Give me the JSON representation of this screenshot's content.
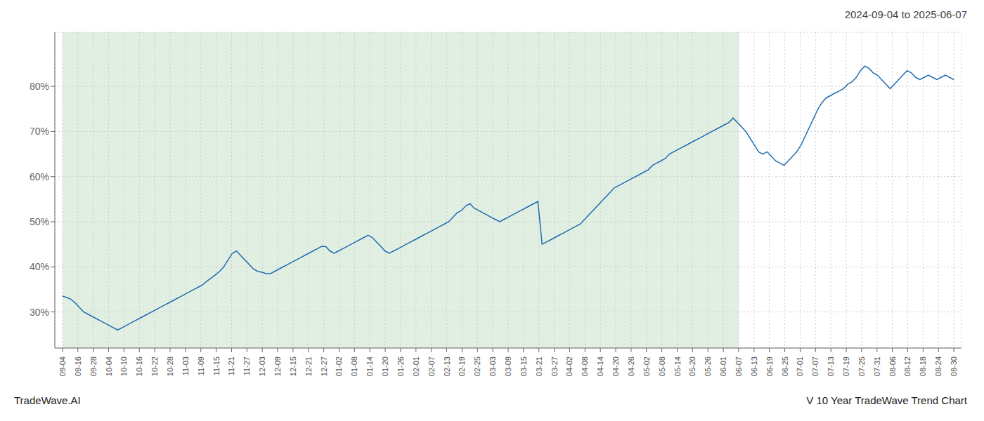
{
  "chart_data": {
    "type": "line",
    "title": "2024-09-04 to 2025-06-07",
    "annotations": [
      "TradeWave.AI",
      "V 10 Year TradeWave Trend Chart"
    ],
    "color": "#1f6cb0",
    "grid": true,
    "shaded_region": {
      "x": [
        0,
        44
      ],
      "color": "#d6ead8"
    },
    "xlim": [
      -0.5,
      58.5
    ],
    "xticks": [
      {
        "value": 0,
        "label": "09-04"
      },
      {
        "value": 1,
        "label": "09-16"
      },
      {
        "value": 2,
        "label": "09-28"
      },
      {
        "value": 3,
        "label": "10-04"
      },
      {
        "value": 4,
        "label": "10-10"
      },
      {
        "value": 5,
        "label": "10-16"
      },
      {
        "value": 6,
        "label": "10-22"
      },
      {
        "value": 7,
        "label": "10-28"
      },
      {
        "value": 8,
        "label": "11-03"
      },
      {
        "value": 9,
        "label": "11-09"
      },
      {
        "value": 10,
        "label": "11-15"
      },
      {
        "value": 11,
        "label": "11-21"
      },
      {
        "value": 12,
        "label": "11-27"
      },
      {
        "value": 13,
        "label": "12-03"
      },
      {
        "value": 14,
        "label": "12-09"
      },
      {
        "value": 15,
        "label": "12-15"
      },
      {
        "value": 16,
        "label": "12-21"
      },
      {
        "value": 17,
        "label": "12-27"
      },
      {
        "value": 18,
        "label": "01-02"
      },
      {
        "value": 19,
        "label": "01-08"
      },
      {
        "value": 20,
        "label": "01-14"
      },
      {
        "value": 21,
        "label": "01-20"
      },
      {
        "value": 22,
        "label": "01-26"
      },
      {
        "value": 23,
        "label": "02-01"
      },
      {
        "value": 24,
        "label": "02-07"
      },
      {
        "value": 25,
        "label": "02-13"
      },
      {
        "value": 26,
        "label": "02-19"
      },
      {
        "value": 27,
        "label": "02-25"
      },
      {
        "value": 28,
        "label": "03-03"
      },
      {
        "value": 29,
        "label": "03-09"
      },
      {
        "value": 30,
        "label": "03-15"
      },
      {
        "value": 31,
        "label": "03-21"
      },
      {
        "value": 32,
        "label": "03-27"
      },
      {
        "value": 33,
        "label": "04-02"
      },
      {
        "value": 34,
        "label": "04-08"
      },
      {
        "value": 35,
        "label": "04-14"
      },
      {
        "value": 36,
        "label": "04-20"
      },
      {
        "value": 37,
        "label": "04-26"
      },
      {
        "value": 38,
        "label": "05-02"
      },
      {
        "value": 39,
        "label": "05-08"
      },
      {
        "value": 40,
        "label": "05-14"
      },
      {
        "value": 41,
        "label": "05-20"
      },
      {
        "value": 42,
        "label": "05-26"
      },
      {
        "value": 43,
        "label": "06-01"
      },
      {
        "value": 44,
        "label": "06-07"
      },
      {
        "value": 45,
        "label": "06-13"
      },
      {
        "value": 46,
        "label": "06-19"
      },
      {
        "value": 47,
        "label": "06-25"
      },
      {
        "value": 48,
        "label": "07-01"
      },
      {
        "value": 49,
        "label": "07-07"
      },
      {
        "value": 50,
        "label": "07-13"
      },
      {
        "value": 51,
        "label": "07-19"
      },
      {
        "value": 52,
        "label": "07-25"
      },
      {
        "value": 53,
        "label": "07-31"
      },
      {
        "value": 54,
        "label": "08-06"
      },
      {
        "value": 55,
        "label": "08-12"
      },
      {
        "value": 56,
        "label": "08-18"
      },
      {
        "value": 57,
        "label": "08-24"
      },
      {
        "value": 58,
        "label": "08-30"
      }
    ],
    "ylim": [
      22,
      92
    ],
    "yticks": [
      {
        "value": 30,
        "label": "30%"
      },
      {
        "value": 40,
        "label": "40%"
      },
      {
        "value": 50,
        "label": "50%"
      },
      {
        "value": 60,
        "label": "60%"
      },
      {
        "value": 70,
        "label": "70%"
      },
      {
        "value": 80,
        "label": "80%"
      }
    ],
    "x": [
      0,
      0.2762,
      0.5524,
      0.8286,
      1.1048,
      1.381,
      1.6571,
      1.9333,
      2.2095,
      2.4857,
      2.7619,
      3.0381,
      3.3143,
      3.5905,
      3.8667,
      4.1429,
      4.419,
      4.6952,
      4.9714,
      5.2476,
      5.5238,
      5.8,
      6.0762,
      6.3524,
      6.6286,
      6.9048,
      7.181,
      7.4571,
      7.7333,
      8.0095,
      8.2857,
      8.5619,
      8.8381,
      9.1143,
      9.3905,
      9.6667,
      9.9429,
      10.219,
      10.4952,
      10.7714,
      11.0476,
      11.3238,
      11.6,
      11.8762,
      12.1524,
      12.4286,
      12.7048,
      12.981,
      13.2571,
      13.5333,
      13.8095,
      14.0857,
      14.3619,
      14.6381,
      14.9143,
      15.1905,
      15.4667,
      15.7429,
      16.019,
      16.2952,
      16.5714,
      16.8476,
      17.1238,
      17.4,
      17.6762,
      17.9524,
      18.2286,
      18.5048,
      18.781,
      19.0571,
      19.3333,
      19.6095,
      19.8857,
      20.1619,
      20.4381,
      20.7143,
      20.9905,
      21.2667,
      21.5429,
      21.819,
      22.0952,
      22.3714,
      22.6476,
      22.9238,
      23.2,
      23.4762,
      23.7524,
      24.0286,
      24.3048,
      24.581,
      24.8571,
      25.1333,
      25.4095,
      25.6857,
      25.9619,
      26.2381,
      26.5143,
      26.7905,
      27.0667,
      27.3429,
      27.619,
      27.8952,
      28.1714,
      28.4476,
      28.7238,
      29,
      29.2762,
      29.5524,
      29.8286,
      30.1048,
      30.381,
      30.6571,
      30.9333,
      31.2095,
      31.4857,
      31.7619,
      32.0381,
      32.3143,
      32.5905,
      32.8667,
      33.1429,
      33.419,
      33.6952,
      33.9714,
      34.2476,
      34.5238,
      34.8,
      35.0762,
      35.3524,
      35.6286,
      35.9048,
      36.181,
      36.4571,
      36.7333,
      37.0095,
      37.2857,
      37.5619,
      37.8381,
      38.1143,
      38.3905,
      38.6667,
      38.9429,
      39.219,
      39.4952,
      39.7714,
      40.0476,
      40.3238,
      40.6,
      40.8762,
      41.1524,
      41.4286,
      41.7048,
      41.981,
      42.2571,
      42.5333,
      42.8095,
      43.0857,
      43.3619,
      43.6381,
      43.9143,
      44.1905,
      44.4667,
      44.7429,
      45.019,
      45.2952,
      45.5714,
      45.8476,
      46.1238,
      46.4,
      46.6762,
      46.9524,
      47.2286,
      47.5048,
      47.781,
      48.0571,
      48.3333,
      48.6095,
      48.8857,
      49.1619,
      49.4381,
      49.7143,
      49.9905,
      50.2667,
      50.5429,
      50.819,
      51.0952,
      51.3714,
      51.6476,
      51.9238,
      52.2,
      52.4762,
      52.7524,
      53.0286,
      53.3048,
      53.581,
      53.8571,
      54.1333,
      54.4095,
      54.6857,
      54.9619,
      55.2381,
      55.5143,
      55.7905,
      56.0667,
      56.3429,
      56.619,
      56.8952,
      57.1714,
      57.4476,
      57.7238,
      58
    ],
    "values": [
      33.5,
      33.2,
      32.8,
      32.0,
      31.0,
      30.0,
      29.5,
      29.0,
      28.5,
      28.0,
      27.5,
      27.0,
      26.5,
      26.0,
      26.5,
      27.0,
      27.5,
      28.0,
      28.5,
      29.0,
      29.5,
      30.0,
      30.5,
      31.0,
      31.5,
      32.0,
      32.5,
      33.0,
      33.5,
      34.0,
      34.5,
      35.0,
      35.5,
      36.0,
      36.8,
      37.5,
      38.2,
      39.0,
      40.0,
      41.5,
      43.0,
      43.5,
      42.5,
      41.5,
      40.5,
      39.5,
      39.0,
      38.8,
      38.5,
      38.5,
      39.0,
      39.5,
      40.0,
      40.5,
      41.0,
      41.5,
      42.0,
      42.5,
      43.0,
      43.5,
      44.0,
      44.5,
      44.5,
      43.5,
      43.0,
      43.5,
      44.0,
      44.5,
      45.0,
      45.5,
      46.0,
      46.5,
      47.0,
      46.5,
      45.5,
      44.5,
      43.5,
      43.0,
      43.5,
      44.0,
      44.5,
      45.0,
      45.5,
      46.0,
      46.5,
      47.0,
      47.5,
      48.0,
      48.5,
      49.0,
      49.5,
      50.0,
      51.0,
      52.0,
      52.5,
      53.5,
      54.0,
      53.0,
      52.5,
      52.0,
      51.5,
      51.0,
      50.5,
      50.0,
      50.5,
      51.0,
      51.5,
      52.0,
      52.5,
      53.0,
      53.5,
      54.0,
      54.5,
      45.0,
      45.5,
      46.0,
      46.5,
      47.0,
      47.5,
      48.0,
      48.5,
      49.0,
      49.5,
      50.5,
      51.5,
      52.5,
      53.5,
      54.5,
      55.5,
      56.5,
      57.5,
      58.0,
      58.5,
      59.0,
      59.5,
      60.0,
      60.5,
      61.0,
      61.5,
      62.5,
      63.0,
      63.5,
      64.0,
      65.0,
      65.5,
      66.0,
      66.5,
      67.0,
      67.5,
      68.0,
      68.5,
      69.0,
      69.5,
      70.0,
      70.5,
      71.0,
      71.5,
      72.0,
      73.0,
      72.0,
      71.0,
      70.0,
      68.5,
      67.0,
      65.5,
      65.0,
      65.5,
      64.5,
      63.5,
      63.0,
      62.5,
      63.5,
      64.5,
      65.5,
      67.0,
      69.0,
      71.0,
      73.0,
      75.0,
      76.5,
      77.5,
      78.0,
      78.5,
      79.0,
      79.5,
      80.5,
      81.0,
      82.0,
      83.5,
      84.5,
      84.0,
      83.0,
      82.5,
      81.5,
      80.5,
      79.5,
      80.5,
      81.5,
      82.5,
      83.5,
      83.0,
      82.0,
      81.5,
      82.0,
      82.5,
      82.0,
      81.5,
      82.0,
      82.5,
      82.0,
      81.5
    ]
  }
}
